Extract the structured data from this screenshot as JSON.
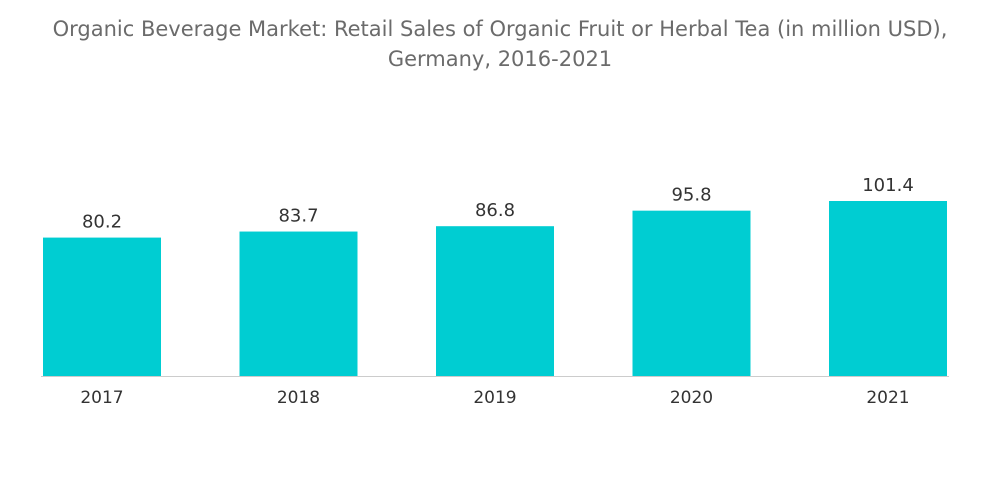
{
  "chart_data": {
    "type": "bar",
    "title_line1": "Organic Beverage Market: Retail Sales of Organic Fruit or Herbal Tea (in million USD),",
    "title_line2": "Germany, 2016-2021",
    "categories": [
      "2017",
      "2018",
      "2019",
      "2020",
      "2021"
    ],
    "values": [
      80.2,
      83.7,
      86.8,
      95.8,
      101.4
    ],
    "value_labels": [
      "80.2",
      "83.7",
      "86.8",
      "95.8",
      "101.4"
    ],
    "xlabel": "",
    "ylabel": "",
    "ylim": [
      0,
      101.4
    ],
    "grid": false,
    "legend": "none",
    "bar_color": "#00cdd2",
    "baseline_color": "#cccccc"
  }
}
